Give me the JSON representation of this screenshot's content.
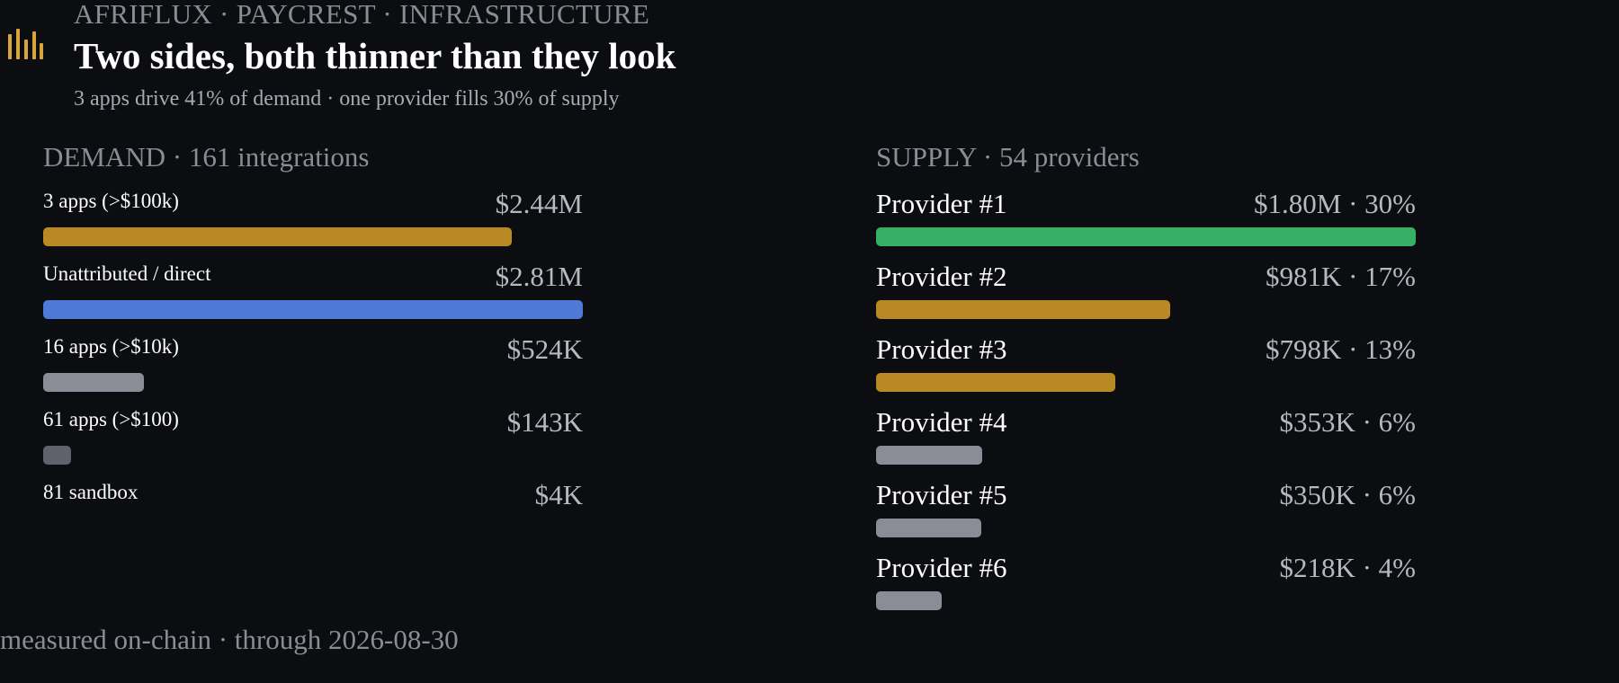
{
  "header": {
    "kicker": "AFRIFLUX · PAYCREST · INFRASTRUCTURE",
    "title": "Two sides, both thinner than they look",
    "subtitle": "3 apps drive 41% of demand · one provider fills 30% of supply"
  },
  "logo_icon": "bar-chart-icon",
  "colors": {
    "background": "#0c0d10",
    "gold": "#b98a24",
    "blue": "#4d7ad6",
    "green": "#37b066",
    "grey": "#8a8d95",
    "dark_grey": "#5f626a"
  },
  "chart_data": [
    {
      "type": "bar",
      "orientation": "horizontal",
      "title": "DEMAND · 161 integrations",
      "categories": [
        "3 apps (>$100k)",
        "Unattributed / direct",
        "16 apps (>$10k)",
        "61 apps (>$100)",
        "81 sandbox"
      ],
      "values": [
        2440000,
        2810000,
        524000,
        143000,
        4000
      ],
      "value_labels": [
        "$2.44M",
        "$2.81M",
        "$524K",
        "$143K",
        "$4K"
      ],
      "bar_colors": [
        "#b98a24",
        "#4d7ad6",
        "#8a8d95",
        "#5f626a",
        "#5f626a"
      ],
      "xlim": [
        0,
        2810000
      ]
    },
    {
      "type": "bar",
      "orientation": "horizontal",
      "title": "SUPPLY · 54 providers",
      "categories": [
        "Provider #1",
        "Provider #2",
        "Provider #3",
        "Provider #4",
        "Provider #5",
        "Provider #6"
      ],
      "values": [
        1800000,
        981000,
        798000,
        353000,
        350000,
        218000
      ],
      "value_labels": [
        "$1.80M · 30%",
        "$981K · 17%",
        "$798K · 13%",
        "$353K · 6%",
        "$350K · 6%",
        "$218K · 4%"
      ],
      "bar_colors": [
        "#37b066",
        "#b98a24",
        "#b98a24",
        "#8a8d95",
        "#8a8d95",
        "#8a8d95"
      ],
      "xlim": [
        0,
        1800000
      ]
    }
  ],
  "footer": {
    "note": "measured on-chain · through 2026-08-30"
  }
}
